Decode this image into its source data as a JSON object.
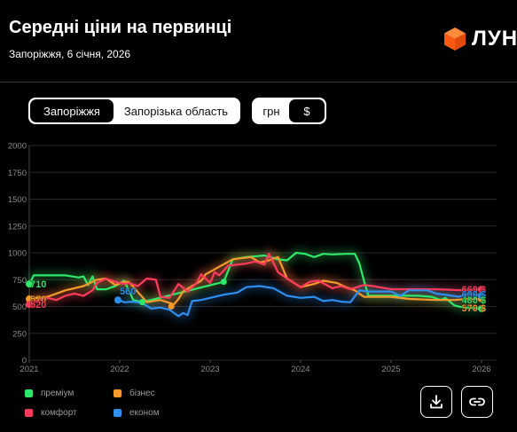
{
  "header": {
    "title": "Середні ціни на первинці",
    "subtitle": "Запоріжжя, 6 січня, 2026",
    "logo_text": "ЛУН"
  },
  "tabs": {
    "region": [
      {
        "label": "Запоріжжя",
        "active": true
      },
      {
        "label": "Запорізька область",
        "active": false
      }
    ],
    "currency": [
      {
        "label": "грн",
        "active": false
      },
      {
        "label": "$",
        "active": true
      }
    ]
  },
  "actions": {
    "download_icon": "download-icon",
    "link_icon": "link-icon"
  },
  "chart_data": {
    "type": "line",
    "yticks": [
      0,
      250,
      500,
      750,
      1000,
      1250,
      1500,
      1750,
      2000
    ],
    "ylim": [
      0,
      2000
    ],
    "xticks": [
      "2021",
      "2022",
      "2023",
      "2024",
      "2025",
      "2026"
    ],
    "xlim": [
      2021.0,
      2026.0
    ],
    "series": [
      {
        "name": "преміум",
        "color": "#2ee86a",
        "start_label": "710",
        "end_label": "480 $",
        "points": [
          [
            2021.0,
            710
          ],
          [
            2021.05,
            790
          ],
          [
            2021.2,
            790
          ],
          [
            2021.4,
            790
          ],
          [
            2021.55,
            770
          ],
          [
            2021.6,
            780
          ],
          [
            2021.65,
            700
          ],
          [
            2021.7,
            780
          ],
          [
            2021.75,
            660
          ],
          [
            2021.85,
            660
          ],
          [
            2021.95,
            690
          ],
          [
            2022.05,
            740
          ],
          [
            2022.1,
            650
          ],
          [
            2022.15,
            560
          ],
          [
            2022.25,
            540
          ],
          [
            2023.15,
            730
          ],
          [
            2023.25,
            940
          ],
          [
            2023.4,
            960
          ],
          [
            2023.6,
            975
          ],
          [
            2023.75,
            940
          ],
          [
            2023.85,
            930
          ],
          [
            2023.95,
            1000
          ],
          [
            2024.05,
            990
          ],
          [
            2024.15,
            960
          ],
          [
            2024.25,
            990
          ],
          [
            2024.35,
            985
          ],
          [
            2024.5,
            990
          ],
          [
            2024.6,
            990
          ],
          [
            2024.65,
            900
          ],
          [
            2024.7,
            740
          ],
          [
            2024.75,
            600
          ],
          [
            2025.0,
            600
          ],
          [
            2025.3,
            600
          ],
          [
            2025.45,
            590
          ],
          [
            2025.55,
            560
          ],
          [
            2025.6,
            580
          ],
          [
            2025.7,
            510
          ],
          [
            2025.8,
            490
          ],
          [
            2026.0,
            480
          ]
        ]
      },
      {
        "name": "бізнес",
        "color": "#f59a2a",
        "start_label": "570",
        "end_label": "570 $",
        "points": [
          [
            2021.0,
            570
          ],
          [
            2021.2,
            590
          ],
          [
            2021.4,
            650
          ],
          [
            2021.6,
            690
          ],
          [
            2021.75,
            750
          ],
          [
            2021.85,
            760
          ],
          [
            2021.95,
            700
          ],
          [
            2022.05,
            730
          ],
          [
            2022.1,
            730
          ],
          [
            2022.3,
            540
          ],
          [
            2022.45,
            560
          ],
          [
            2022.6,
            520
          ],
          [
            2022.65,
            570
          ],
          [
            2022.7,
            640
          ],
          [
            2022.8,
            690
          ],
          [
            2022.9,
            740
          ],
          [
            2022.95,
            800
          ],
          [
            2023.1,
            870
          ],
          [
            2023.25,
            940
          ],
          [
            2023.45,
            960
          ],
          [
            2023.55,
            910
          ],
          [
            2023.65,
            930
          ],
          [
            2023.75,
            960
          ],
          [
            2023.85,
            760
          ],
          [
            2024.0,
            680
          ],
          [
            2024.15,
            710
          ],
          [
            2024.25,
            740
          ],
          [
            2024.4,
            720
          ],
          [
            2024.5,
            680
          ],
          [
            2024.6,
            650
          ],
          [
            2024.7,
            590
          ],
          [
            2025.0,
            590
          ],
          [
            2025.2,
            570
          ],
          [
            2025.5,
            560
          ],
          [
            2025.7,
            560
          ],
          [
            2025.85,
            570
          ],
          [
            2026.0,
            570
          ]
        ]
      },
      {
        "name": "комфорт",
        "color": "#ff3b5c",
        "start_label": "520",
        "end_label": "660 $",
        "points": [
          [
            2021.0,
            520
          ],
          [
            2021.1,
            560
          ],
          [
            2021.2,
            580
          ],
          [
            2021.3,
            560
          ],
          [
            2021.4,
            600
          ],
          [
            2021.5,
            620
          ],
          [
            2021.6,
            600
          ],
          [
            2021.7,
            650
          ],
          [
            2021.75,
            720
          ],
          [
            2021.85,
            760
          ],
          [
            2021.95,
            730
          ],
          [
            2022.05,
            710
          ],
          [
            2022.1,
            720
          ],
          [
            2022.2,
            690
          ],
          [
            2022.3,
            760
          ],
          [
            2022.4,
            750
          ],
          [
            2022.45,
            590
          ],
          [
            2022.55,
            580
          ],
          [
            2022.65,
            710
          ],
          [
            2022.75,
            640
          ],
          [
            2022.85,
            720
          ],
          [
            2022.9,
            800
          ],
          [
            2023.0,
            720
          ],
          [
            2023.05,
            820
          ],
          [
            2023.1,
            790
          ],
          [
            2023.2,
            880
          ],
          [
            2023.3,
            890
          ],
          [
            2023.4,
            900
          ],
          [
            2023.5,
            920
          ],
          [
            2023.6,
            890
          ],
          [
            2023.65,
            990
          ],
          [
            2023.75,
            820
          ],
          [
            2023.85,
            760
          ],
          [
            2024.0,
            680
          ],
          [
            2024.1,
            730
          ],
          [
            2024.2,
            740
          ],
          [
            2024.35,
            670
          ],
          [
            2024.45,
            690
          ],
          [
            2024.55,
            660
          ],
          [
            2024.7,
            700
          ],
          [
            2024.8,
            690
          ],
          [
            2025.0,
            660
          ],
          [
            2025.5,
            660
          ],
          [
            2025.8,
            650
          ],
          [
            2026.0,
            660
          ]
        ]
      },
      {
        "name": "економ",
        "color": "#2f8ff0",
        "start_label": "560",
        "end_label": "600 $",
        "points": [
          [
            2021.98,
            560
          ],
          [
            2022.05,
            540
          ],
          [
            2022.15,
            545
          ],
          [
            2022.25,
            530
          ],
          [
            2022.35,
            480
          ],
          [
            2022.45,
            490
          ],
          [
            2022.55,
            470
          ],
          [
            2022.65,
            410
          ],
          [
            2022.7,
            440
          ],
          [
            2022.75,
            420
          ],
          [
            2022.8,
            550
          ],
          [
            2022.9,
            560
          ],
          [
            2023.0,
            580
          ],
          [
            2023.15,
            610
          ],
          [
            2023.3,
            630
          ],
          [
            2023.4,
            680
          ],
          [
            2023.55,
            690
          ],
          [
            2023.7,
            670
          ],
          [
            2023.85,
            600
          ],
          [
            2024.0,
            580
          ],
          [
            2024.15,
            590
          ],
          [
            2024.25,
            550
          ],
          [
            2024.35,
            560
          ],
          [
            2024.45,
            545
          ],
          [
            2024.55,
            540
          ],
          [
            2024.65,
            650
          ],
          [
            2024.75,
            640
          ],
          [
            2024.85,
            640
          ],
          [
            2025.0,
            640
          ],
          [
            2025.1,
            600
          ],
          [
            2025.2,
            650
          ],
          [
            2025.4,
            650
          ],
          [
            2025.5,
            620
          ],
          [
            2025.6,
            610
          ],
          [
            2025.75,
            590
          ],
          [
            2025.85,
            620
          ],
          [
            2026.0,
            600
          ]
        ]
      }
    ]
  }
}
